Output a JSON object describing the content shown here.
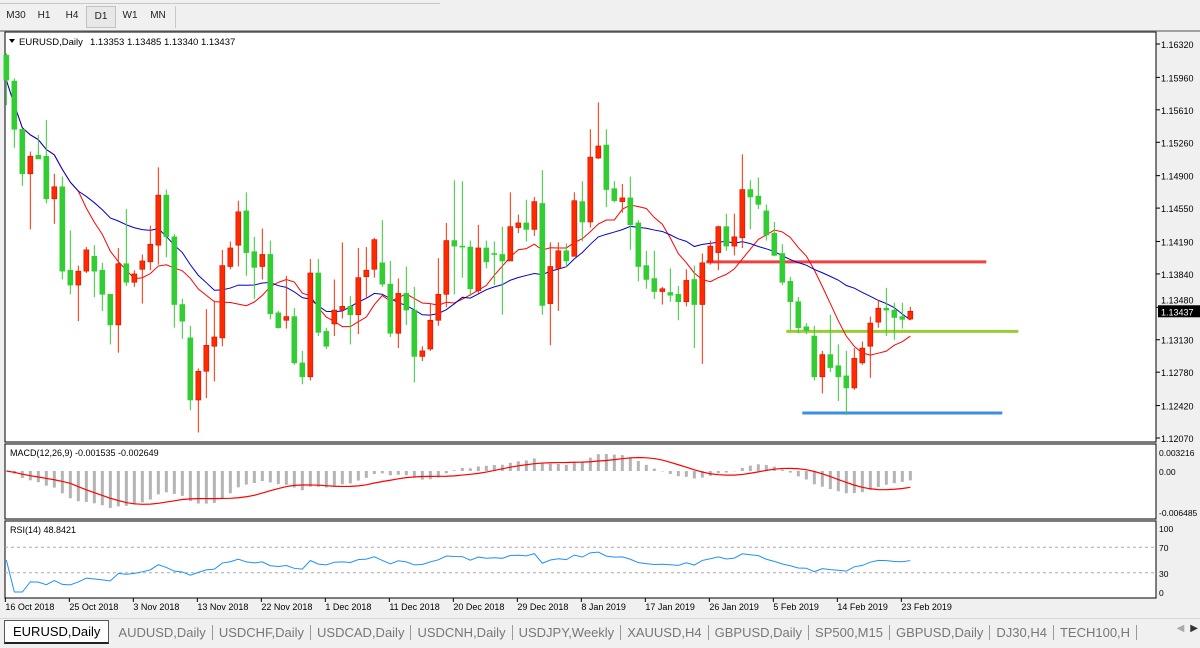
{
  "toolbar": {
    "timeframes": [
      "M30",
      "H1",
      "H4",
      "D1",
      "W1",
      "MN"
    ],
    "active_timeframe": "D1"
  },
  "main_chart": {
    "symbol_label": "EURUSD,Daily",
    "ohlc_label": "1.13353 1.13485 1.13340 1.13437",
    "current_price": "1.13437",
    "price_ticks": [
      "1.16320",
      "1.15960",
      "1.15610",
      "1.15260",
      "1.14900",
      "1.14550",
      "1.14190",
      "1.13840",
      "1.13480",
      "1.13130",
      "1.12780",
      "1.12420",
      "1.12070"
    ],
    "bull_color": "#ff2a00",
    "bear_color": "#32cd32",
    "fast_ma_color": "#ff0000",
    "slow_ma_color": "#0000cc",
    "horizontal_lines": [
      {
        "price": 1.1397,
        "color": "#f04040"
      },
      {
        "price": 1.1322,
        "color": "#9acd32"
      },
      {
        "price": 1.1234,
        "color": "#3c8fe0"
      }
    ]
  },
  "macd": {
    "label": "MACD(12,26,9) -0.001535 -0.002649",
    "ticks": [
      "0.003216",
      "0.00",
      "-0.006485"
    ],
    "histogram_color": "#b4b4b4",
    "signal_color": "#ff0000"
  },
  "rsi": {
    "label": "RSI(14) 48.8421",
    "ticks": [
      "100",
      "70",
      "30",
      "0"
    ],
    "line_color": "#1e90ff"
  },
  "time_axis": {
    "labels": [
      "16 Oct 2018",
      "25 Oct 2018",
      "3 Nov 2018",
      "13 Nov 2018",
      "22 Nov 2018",
      "1 Dec 2018",
      "11 Dec 2018",
      "20 Dec 2018",
      "29 Dec 2018",
      "8 Jan 2019",
      "17 Jan 2019",
      "26 Jan 2019",
      "5 Feb 2019",
      "14 Feb 2019",
      "23 Feb 2019"
    ]
  },
  "tabs": [
    "EURUSD,Daily",
    "AUDUSD,Daily",
    "USDCHF,Daily",
    "USDCAD,Daily",
    "USDCNH,Daily",
    "USDJPY,Weekly",
    "XAUUSD,H4",
    "GBPUSD,Daily",
    "SP500,M15",
    "GBPUSD,Daily",
    "DJ30,H4",
    "TECH100,H"
  ],
  "active_tab": "EURUSD,Daily",
  "chart_data": {
    "type": "candlestick",
    "ylim": [
      1.1207,
      1.1632
    ],
    "candles_ohlc": [
      [
        1.162,
        1.1622,
        1.1566,
        1.1593
      ],
      [
        1.1592,
        1.1595,
        1.152,
        1.154
      ],
      [
        1.154,
        1.154,
        1.1479,
        1.1492
      ],
      [
        1.1492,
        1.1516,
        1.1432,
        1.1511
      ],
      [
        1.1512,
        1.1534,
        1.1508,
        1.1508
      ],
      [
        1.1511,
        1.155,
        1.146,
        1.1465
      ],
      [
        1.1465,
        1.1492,
        1.1438,
        1.1478
      ],
      [
        1.1478,
        1.1489,
        1.1378,
        1.1387
      ],
      [
        1.1388,
        1.1431,
        1.1362,
        1.1372
      ],
      [
        1.1372,
        1.1393,
        1.1333,
        1.1387
      ],
      [
        1.1387,
        1.1413,
        1.1385,
        1.141
      ],
      [
        1.1403,
        1.1415,
        1.1359,
        1.1387
      ],
      [
        1.1388,
        1.1396,
        1.1344,
        1.1362
      ],
      [
        1.1362,
        1.1362,
        1.1308,
        1.1329
      ],
      [
        1.1329,
        1.1412,
        1.1299,
        1.1395
      ],
      [
        1.1395,
        1.1454,
        1.1371,
        1.1375
      ],
      [
        1.1375,
        1.1388,
        1.137,
        1.1384
      ],
      [
        1.1389,
        1.1405,
        1.1352,
        1.1398
      ],
      [
        1.1397,
        1.1436,
        1.1388,
        1.1416
      ],
      [
        1.1415,
        1.1499,
        1.1394,
        1.1469
      ],
      [
        1.1469,
        1.1475,
        1.1402,
        1.1424
      ],
      [
        1.1424,
        1.1427,
        1.1326,
        1.1351
      ],
      [
        1.1351,
        1.1357,
        1.1314,
        1.1333
      ],
      [
        1.1315,
        1.1328,
        1.1237,
        1.1248
      ],
      [
        1.1248,
        1.1282,
        1.1213,
        1.1279
      ],
      [
        1.1279,
        1.1346,
        1.125,
        1.1307
      ],
      [
        1.1306,
        1.1355,
        1.1268,
        1.1316
      ],
      [
        1.1315,
        1.141,
        1.1306,
        1.1393
      ],
      [
        1.1392,
        1.1419,
        1.1389,
        1.1412
      ],
      [
        1.1415,
        1.1463,
        1.1392,
        1.1451
      ],
      [
        1.1452,
        1.1472,
        1.1382,
        1.1407
      ],
      [
        1.1408,
        1.1424,
        1.1357,
        1.1391
      ],
      [
        1.1392,
        1.1433,
        1.1378,
        1.1405
      ],
      [
        1.1405,
        1.142,
        1.1335,
        1.1341
      ],
      [
        1.1342,
        1.1344,
        1.1325,
        1.1326
      ],
      [
        1.1334,
        1.1382,
        1.1325,
        1.1338
      ],
      [
        1.1338,
        1.1347,
        1.1286,
        1.1288
      ],
      [
        1.1288,
        1.1301,
        1.1265,
        1.1273
      ],
      [
        1.1273,
        1.14,
        1.1269,
        1.1385
      ],
      [
        1.1385,
        1.14,
        1.1317,
        1.1321
      ],
      [
        1.1322,
        1.1326,
        1.1303,
        1.1306
      ],
      [
        1.133,
        1.1378,
        1.1317,
        1.1345
      ],
      [
        1.1345,
        1.1418,
        1.1336,
        1.1349
      ],
      [
        1.1349,
        1.136,
        1.1308,
        1.134
      ],
      [
        1.134,
        1.1412,
        1.1319,
        1.138
      ],
      [
        1.1381,
        1.1413,
        1.1357,
        1.1388
      ],
      [
        1.1389,
        1.1423,
        1.138,
        1.1421
      ],
      [
        1.1396,
        1.1442,
        1.137,
        1.1373
      ],
      [
        1.1373,
        1.1398,
        1.1316,
        1.132
      ],
      [
        1.132,
        1.1379,
        1.1304,
        1.1363
      ],
      [
        1.1363,
        1.1392,
        1.1329,
        1.1345
      ],
      [
        1.1345,
        1.137,
        1.1267,
        1.1295
      ],
      [
        1.1295,
        1.1306,
        1.129,
        1.1301
      ],
      [
        1.1303,
        1.1352,
        1.1301,
        1.1334
      ],
      [
        1.1334,
        1.1401,
        1.1328,
        1.1362
      ],
      [
        1.1362,
        1.1439,
        1.1348,
        1.142
      ],
      [
        1.142,
        1.1485,
        1.1362,
        1.1414
      ],
      [
        1.1414,
        1.1484,
        1.138,
        1.1413
      ],
      [
        1.1413,
        1.142,
        1.136,
        1.1368
      ],
      [
        1.1366,
        1.1437,
        1.1363,
        1.1412
      ],
      [
        1.1412,
        1.142,
        1.139,
        1.1397
      ],
      [
        1.1406,
        1.1419,
        1.1372,
        1.1405
      ],
      [
        1.1405,
        1.1435,
        1.134,
        1.1398
      ],
      [
        1.1398,
        1.1472,
        1.1398,
        1.1435
      ],
      [
        1.1434,
        1.1448,
        1.1428,
        1.1439
      ],
      [
        1.1439,
        1.1464,
        1.1419,
        1.1432
      ],
      [
        1.1432,
        1.1467,
        1.1425,
        1.1462
      ],
      [
        1.146,
        1.1496,
        1.134,
        1.135
      ],
      [
        1.1352,
        1.1418,
        1.1307,
        1.1392
      ],
      [
        1.139,
        1.1418,
        1.1344,
        1.1409
      ],
      [
        1.1409,
        1.1417,
        1.1391,
        1.1398
      ],
      [
        1.1403,
        1.1472,
        1.1403,
        1.1463
      ],
      [
        1.1462,
        1.1484,
        1.1419,
        1.144
      ],
      [
        1.144,
        1.154,
        1.1434,
        1.151
      ],
      [
        1.1509,
        1.1569,
        1.1508,
        1.1522
      ],
      [
        1.1523,
        1.154,
        1.1456,
        1.1475
      ],
      [
        1.1476,
        1.1484,
        1.1461,
        1.1463
      ],
      [
        1.1462,
        1.1481,
        1.145,
        1.1466
      ],
      [
        1.1466,
        1.1489,
        1.141,
        1.1437
      ],
      [
        1.1439,
        1.1442,
        1.1376,
        1.1392
      ],
      [
        1.1393,
        1.1409,
        1.1368,
        1.1378
      ],
      [
        1.1379,
        1.1409,
        1.1357,
        1.1365
      ],
      [
        1.1365,
        1.137,
        1.1351,
        1.1368
      ],
      [
        1.1364,
        1.139,
        1.1354,
        1.1361
      ],
      [
        1.1362,
        1.1371,
        1.1334,
        1.1354
      ],
      [
        1.1354,
        1.1389,
        1.1349,
        1.1377
      ],
      [
        1.1378,
        1.1393,
        1.1304,
        1.1351
      ],
      [
        1.1351,
        1.1406,
        1.1287,
        1.1396
      ],
      [
        1.1397,
        1.142,
        1.1394,
        1.1414
      ],
      [
        1.1407,
        1.1436,
        1.1388,
        1.1435
      ],
      [
        1.1435,
        1.1449,
        1.1409,
        1.1414
      ],
      [
        1.1414,
        1.1449,
        1.1404,
        1.1424
      ],
      [
        1.1423,
        1.1513,
        1.1412,
        1.1475
      ],
      [
        1.1475,
        1.1485,
        1.1432,
        1.1467
      ],
      [
        1.1468,
        1.1488,
        1.1454,
        1.1459
      ],
      [
        1.1452,
        1.1459,
        1.142,
        1.1426
      ],
      [
        1.1428,
        1.144,
        1.1403,
        1.1404
      ],
      [
        1.1406,
        1.1416,
        1.1372,
        1.1375
      ],
      [
        1.1376,
        1.1381,
        1.1323,
        1.1354
      ],
      [
        1.1354,
        1.1359,
        1.132,
        1.1326
      ],
      [
        1.1327,
        1.1331,
        1.1319,
        1.1323
      ],
      [
        1.1317,
        1.1328,
        1.1269,
        1.1273
      ],
      [
        1.1273,
        1.1301,
        1.1255,
        1.1297
      ],
      [
        1.1297,
        1.134,
        1.1278,
        1.1283
      ],
      [
        1.1285,
        1.1308,
        1.1247,
        1.1273
      ],
      [
        1.1274,
        1.1301,
        1.1232,
        1.1261
      ],
      [
        1.1261,
        1.1304,
        1.1259,
        1.1293
      ],
      [
        1.1288,
        1.1311,
        1.1286,
        1.1304
      ],
      [
        1.1306,
        1.1338,
        1.1272,
        1.1331
      ],
      [
        1.1332,
        1.1356,
        1.1326,
        1.1347
      ],
      [
        1.1347,
        1.1369,
        1.1317,
        1.1345
      ],
      [
        1.1345,
        1.1353,
        1.1313,
        1.1337
      ],
      [
        1.1338,
        1.1353,
        1.1325,
        1.1335
      ],
      [
        1.13353,
        1.13485,
        1.1334,
        1.13437
      ]
    ]
  }
}
